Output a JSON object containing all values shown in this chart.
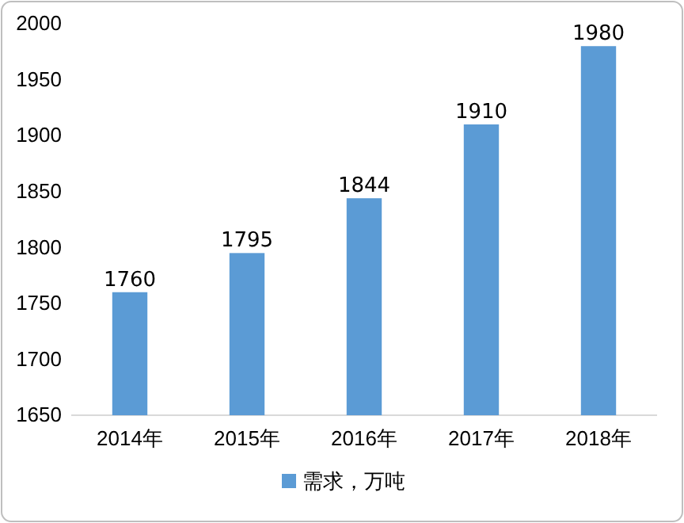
{
  "chart_data": {
    "type": "bar",
    "categories": [
      "2014年",
      "2015年",
      "2016年",
      "2017年",
      "2018年"
    ],
    "series": [
      {
        "name": "需求，万吨",
        "color": "#5b9bd5",
        "values": [
          1760,
          1795,
          1844,
          1910,
          1980
        ]
      }
    ],
    "ylim": [
      1650,
      2000
    ],
    "yticks": [
      1650,
      1700,
      1750,
      1800,
      1850,
      1900,
      1950,
      2000
    ],
    "data_labels": true,
    "legend": "bottom",
    "grid": false
  }
}
